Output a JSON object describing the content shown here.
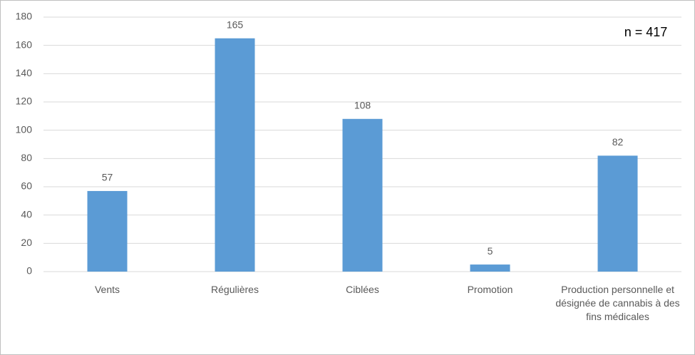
{
  "chart_data": {
    "type": "bar",
    "categories": [
      "Vents",
      "Régulières",
      "Ciblées",
      "Promotion",
      "Production personnelle et désignée de cannabis à des fins médicales"
    ],
    "values": [
      57,
      165,
      108,
      5,
      82
    ],
    "color": "#5b9bd5",
    "ylim": [
      0,
      180
    ],
    "yticks": [
      0,
      20,
      40,
      60,
      80,
      100,
      120,
      140,
      160,
      180
    ],
    "grid": true,
    "annotation": "n = 417"
  }
}
